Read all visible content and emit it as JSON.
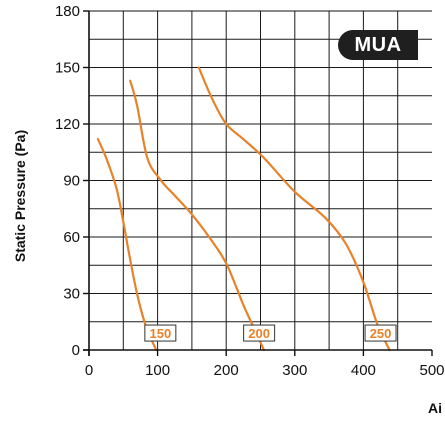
{
  "badge": {
    "text": "MUA"
  },
  "chart_data": {
    "type": "line",
    "title": "",
    "xlabel": "Ai",
    "ylabel": "Static Pressure (Pa)",
    "xlim": [
      0,
      500
    ],
    "ylim": [
      0,
      180
    ],
    "x_ticks": [
      0,
      100,
      200,
      300,
      400,
      500
    ],
    "y_ticks": [
      0,
      30,
      60,
      90,
      120,
      150,
      180
    ],
    "grid": true,
    "line_color": "#e8822a",
    "series": [
      {
        "name": "150",
        "points": [
          [
            13,
            112
          ],
          [
            25,
            102
          ],
          [
            40,
            86
          ],
          [
            50,
            68
          ],
          [
            60,
            48
          ],
          [
            70,
            30
          ],
          [
            80,
            16
          ],
          [
            88,
            8
          ],
          [
            98,
            0
          ]
        ]
      },
      {
        "name": "200",
        "points": [
          [
            60,
            143
          ],
          [
            70,
            130
          ],
          [
            85,
            102
          ],
          [
            105,
            90
          ],
          [
            125,
            82
          ],
          [
            150,
            72
          ],
          [
            175,
            60
          ],
          [
            200,
            46
          ],
          [
            225,
            24
          ],
          [
            240,
            12
          ],
          [
            255,
            0
          ]
        ]
      },
      {
        "name": "250",
        "points": [
          [
            160,
            150
          ],
          [
            180,
            133
          ],
          [
            200,
            120
          ],
          [
            225,
            112
          ],
          [
            255,
            102
          ],
          [
            300,
            84
          ],
          [
            345,
            70
          ],
          [
            375,
            56
          ],
          [
            400,
            36
          ],
          [
            420,
            14
          ],
          [
            438,
            0
          ]
        ]
      }
    ],
    "curve_labels": [
      {
        "text": "150",
        "x": 104,
        "y": 9
      },
      {
        "text": "200",
        "x": 248,
        "y": 9
      },
      {
        "text": "250",
        "x": 425,
        "y": 9
      }
    ]
  }
}
